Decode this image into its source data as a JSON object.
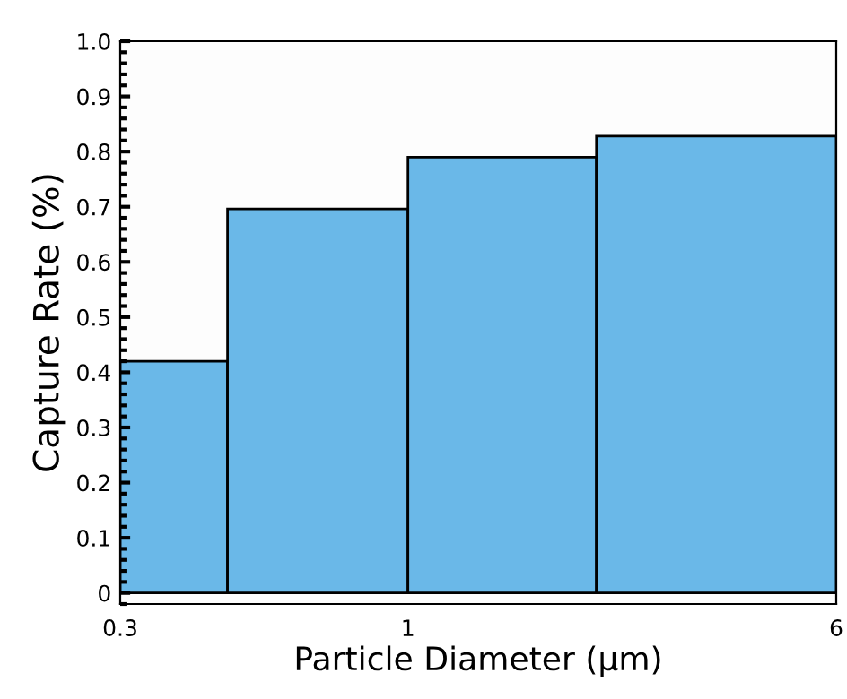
{
  "chart_data": {
    "type": "histogram",
    "xlabel": "Particle Diameter (μm)",
    "ylabel": "Capture Rate (%)",
    "bins": [
      0.3,
      0.47,
      1,
      2.2,
      6
    ],
    "values": [
      0.42,
      0.696,
      0.79,
      0.828
    ],
    "color": "#6ab8e8",
    "log": "x",
    "xlim": [
      0.3,
      6
    ],
    "xticks": [
      0.3,
      1,
      6
    ],
    "ylim": [
      -0.02,
      1.0
    ],
    "yticks": [
      0,
      0.1,
      0.2,
      0.3,
      0.4,
      0.5,
      0.6,
      0.7,
      0.8,
      0.9,
      {
        "value": 1,
        "label": "1.0"
      }
    ],
    "grid": false
  }
}
